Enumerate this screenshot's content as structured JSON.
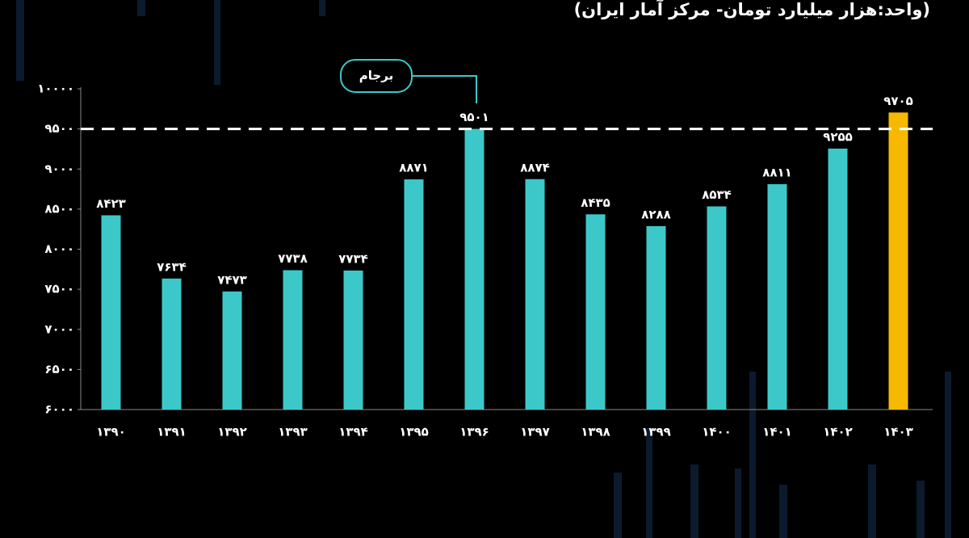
{
  "chart_data": {
    "type": "bar",
    "subtitle": "(واحد:هزار میلیارد تومان- مرکز آمار ایران)",
    "annotation": "برجام",
    "categories": [
      "۱۳۹۰",
      "۱۳۹۱",
      "۱۳۹۲",
      "۱۳۹۳",
      "۱۳۹۴",
      "۱۳۹۵",
      "۱۳۹۶",
      "۱۳۹۷",
      "۱۳۹۸",
      "۱۳۹۹",
      "۱۴۰۰",
      "۱۴۰۱",
      "۱۴۰۲",
      "۱۴۰۳"
    ],
    "values": [
      8423,
      7634,
      7473,
      7738,
      7734,
      8871,
      9501,
      8874,
      8435,
      8288,
      8534,
      8811,
      9255,
      9705
    ],
    "value_labels": [
      "۸۴۲۳",
      "۷۶۳۴",
      "۷۴۷۳",
      "۷۷۳۸",
      "۷۷۳۴",
      "۸۸۷۱",
      "۹۵۰۱",
      "۸۸۷۴",
      "۸۴۳۵",
      "۸۲۸۸",
      "۸۵۳۴",
      "۸۸۱۱",
      "۹۲۵۵",
      "۹۷۰۵"
    ],
    "colors": [
      "#3cc8c8",
      "#3cc8c8",
      "#3cc8c8",
      "#3cc8c8",
      "#3cc8c8",
      "#3cc8c8",
      "#3cc8c8",
      "#3cc8c8",
      "#3cc8c8",
      "#3cc8c8",
      "#3cc8c8",
      "#3cc8c8",
      "#3cc8c8",
      "#f7b900"
    ],
    "reference_line": 9500,
    "ylim": [
      6000,
      10000
    ],
    "yticks": [
      {
        "value": 6000,
        "label": "۶۰۰۰"
      },
      {
        "value": 6500,
        "label": "۶۵۰۰"
      },
      {
        "value": 7000,
        "label": "۷۰۰۰"
      },
      {
        "value": 7500,
        "label": "۷۵۰۰"
      },
      {
        "value": 8000,
        "label": "۸۰۰۰"
      },
      {
        "value": 8500,
        "label": "۸۵۰۰"
      },
      {
        "value": 9000,
        "label": "۹۰۰۰"
      },
      {
        "value": 9500,
        "label": "۹۵۰۰"
      },
      {
        "value": 10000,
        "label": "۱۰۰۰۰"
      }
    ],
    "grid": false
  }
}
